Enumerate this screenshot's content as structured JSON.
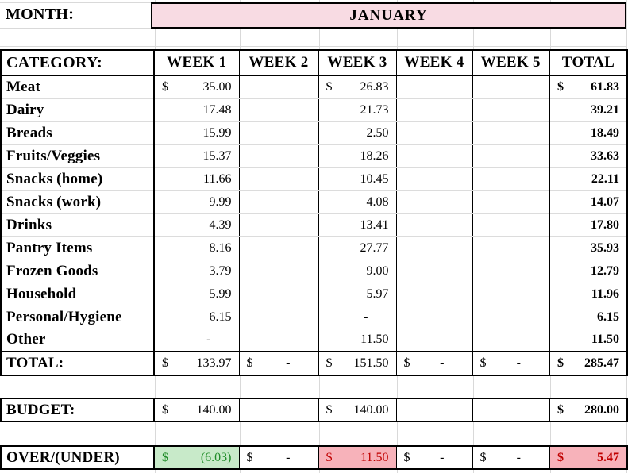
{
  "month_row": {
    "label": "MONTH:",
    "value": "JANUARY"
  },
  "colors": {
    "month_cell_pink": "#f8dbe3",
    "under_budget_green_bg": "#c8eac9",
    "under_budget_green_text": "#1f8b27",
    "over_budget_red_bg": "#f7b2ba",
    "over_budget_red_text": "#c00000",
    "grid_line_gray": "#d9d9d9"
  },
  "table": {
    "headers": [
      "CATEGORY:",
      "WEEK 1",
      "WEEK 2",
      "WEEK 3",
      "WEEK 4",
      "WEEK 5",
      "TOTAL"
    ],
    "rows": [
      {
        "name": "Meat",
        "cells": [
          {
            "cur": "$",
            "val": "35.00"
          },
          null,
          {
            "cur": "$",
            "val": "26.83"
          },
          null,
          null,
          {
            "cur": "$",
            "val": "61.83"
          }
        ]
      },
      {
        "name": "Dairy",
        "cells": [
          {
            "val": "17.48"
          },
          null,
          {
            "val": "21.73"
          },
          null,
          null,
          {
            "val": "39.21"
          }
        ]
      },
      {
        "name": "Breads",
        "cells": [
          {
            "val": "15.99"
          },
          null,
          {
            "val": "2.50"
          },
          null,
          null,
          {
            "val": "18.49"
          }
        ]
      },
      {
        "name": "Fruits/Veggies",
        "cells": [
          {
            "val": "15.37"
          },
          null,
          {
            "val": "18.26"
          },
          null,
          null,
          {
            "val": "33.63"
          }
        ]
      },
      {
        "name": "Snacks (home)",
        "cells": [
          {
            "val": "11.66"
          },
          null,
          {
            "val": "10.45"
          },
          null,
          null,
          {
            "val": "22.11"
          }
        ]
      },
      {
        "name": "Snacks (work)",
        "cells": [
          {
            "val": "9.99"
          },
          null,
          {
            "val": "4.08"
          },
          null,
          null,
          {
            "val": "14.07"
          }
        ]
      },
      {
        "name": "Drinks",
        "cells": [
          {
            "val": "4.39"
          },
          null,
          {
            "val": "13.41"
          },
          null,
          null,
          {
            "val": "17.80"
          }
        ]
      },
      {
        "name": "Pantry Items",
        "cells": [
          {
            "val": "8.16"
          },
          null,
          {
            "val": "27.77"
          },
          null,
          null,
          {
            "val": "35.93"
          }
        ]
      },
      {
        "name": "Frozen Goods",
        "cells": [
          {
            "val": "3.79"
          },
          null,
          {
            "val": "9.00"
          },
          null,
          null,
          {
            "val": "12.79"
          }
        ]
      },
      {
        "name": "Household",
        "cells": [
          {
            "val": "5.99"
          },
          null,
          {
            "val": "5.97"
          },
          null,
          null,
          {
            "val": "11.96"
          }
        ]
      },
      {
        "name": "Personal/Hygiene",
        "cells": [
          {
            "val": "6.15"
          },
          null,
          {
            "val": "-",
            "dash": true
          },
          null,
          null,
          {
            "val": "6.15"
          }
        ]
      },
      {
        "name": "Other",
        "cells": [
          {
            "val": "-",
            "dash": true
          },
          null,
          {
            "val": "11.50"
          },
          null,
          null,
          {
            "val": "11.50"
          }
        ]
      }
    ],
    "total_row": {
      "name": "TOTAL:",
      "cells": [
        {
          "cur": "$",
          "val": "133.97"
        },
        {
          "cur": "$",
          "val": "-",
          "dash": true
        },
        {
          "cur": "$",
          "val": "151.50"
        },
        {
          "cur": "$",
          "val": "-",
          "dash": true
        },
        {
          "cur": "$",
          "val": "-",
          "dash": true
        },
        {
          "cur": "$",
          "val": "285.47"
        }
      ]
    }
  },
  "budget_row": {
    "name": "BUDGET:",
    "cells": [
      {
        "cur": "$",
        "val": "140.00"
      },
      null,
      {
        "cur": "$",
        "val": "140.00"
      },
      null,
      null,
      {
        "cur": "$",
        "val": "280.00"
      }
    ]
  },
  "over_under_row": {
    "name": "OVER/(UNDER)",
    "cells": [
      {
        "cur": "$",
        "val": "(6.03)",
        "state": "good"
      },
      {
        "cur": "$",
        "val": "-",
        "dash": true
      },
      {
        "cur": "$",
        "val": "11.50",
        "state": "bad"
      },
      {
        "cur": "$",
        "val": "-",
        "dash": true
      },
      {
        "cur": "$",
        "val": "-",
        "dash": true
      },
      {
        "cur": "$",
        "val": "5.47",
        "state": "bad"
      }
    ]
  }
}
